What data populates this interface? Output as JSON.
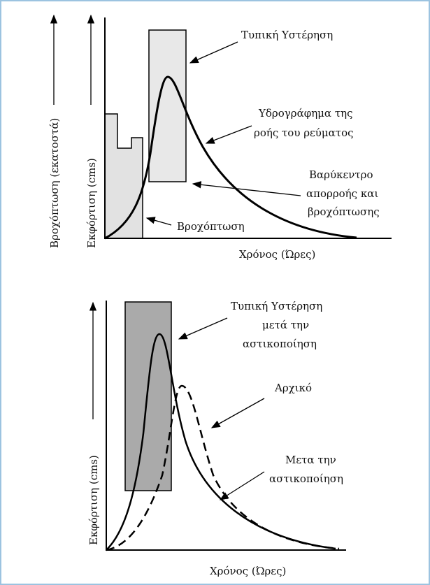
{
  "top": {
    "y_label_rain": "Βροχόπτωση (εκατοστά)",
    "y_label_discharge": "Εκφόρτιση (cms)",
    "lag": "Τυπική Υστέρηση",
    "hydrograph": [
      "Υδρογράφημα της",
      "ροής του ρεύματος"
    ],
    "centroid": [
      "Βαρύκεντρο",
      "απορροής και",
      "βροχόπτωσης"
    ],
    "rainfall": "Βροχόπτωση",
    "x_label": "Χρόνος (Ώρες)"
  },
  "bottom": {
    "lag": [
      "Τυπική Υστέρηση",
      "μετά την",
      "αστικοποίηση"
    ],
    "original": "Αρχικό",
    "after": [
      "Μετα την",
      "αστικοποίηση"
    ],
    "y_label": "Εκφόρτιση (cms)",
    "x_label": "Χρόνος (Ώρες)"
  }
}
